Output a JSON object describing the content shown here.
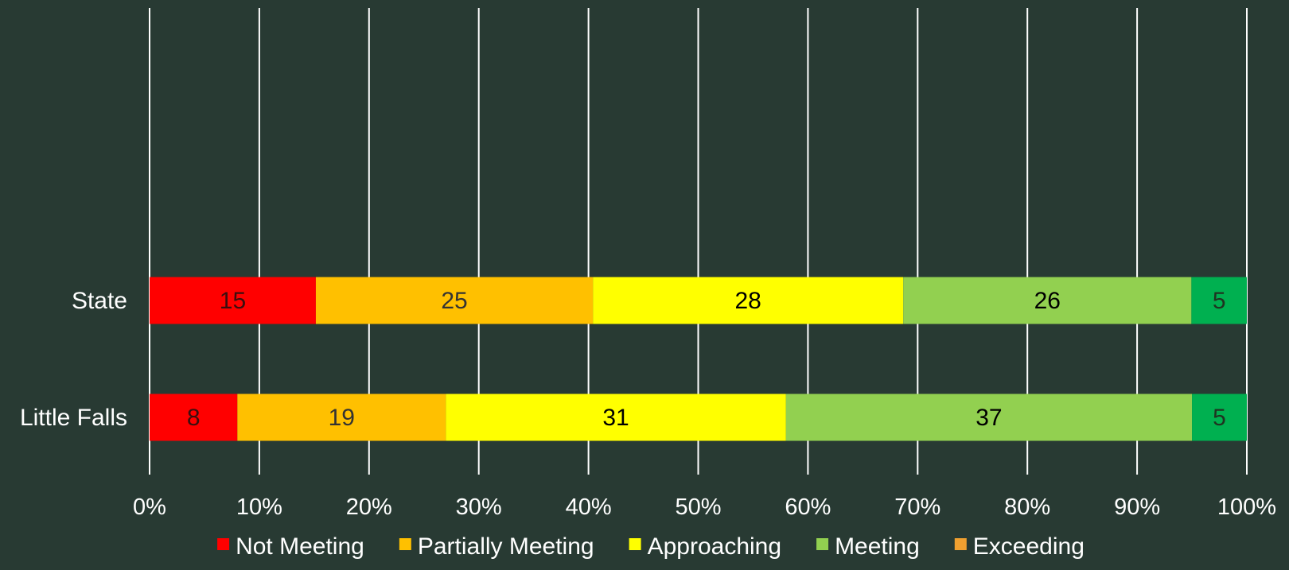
{
  "chart_data": {
    "type": "bar",
    "orientation": "horizontal",
    "stacked": "percent",
    "title": "",
    "xlabel": "",
    "ylabel": "",
    "xlim": [
      0,
      100
    ],
    "x_ticks": [
      "0%",
      "10%",
      "20%",
      "30%",
      "40%",
      "50%",
      "60%",
      "70%",
      "80%",
      "90%",
      "100%"
    ],
    "grid": "vertical",
    "legend_position": "bottom",
    "categories": [
      "State",
      "Little Falls"
    ],
    "series": [
      {
        "name": "Not Meeting",
        "color": "#ff0000",
        "label_color": "#3a0f0f",
        "values": [
          15,
          8
        ]
      },
      {
        "name": "Partially Meeting",
        "color": "#ffc000",
        "label_color": "#333333",
        "values": [
          25,
          19
        ]
      },
      {
        "name": "Approaching",
        "color": "#ffff00",
        "label_color": "#000000",
        "values": [
          28,
          31
        ]
      },
      {
        "name": "Meeting",
        "color": "#92d050",
        "label_color": "#000000",
        "values": [
          26,
          37
        ]
      },
      {
        "name": "Exceeding",
        "color": "#00b050",
        "legend_color": "#f0a030",
        "label_color": "#1f3320",
        "values": [
          5,
          5
        ]
      }
    ]
  }
}
